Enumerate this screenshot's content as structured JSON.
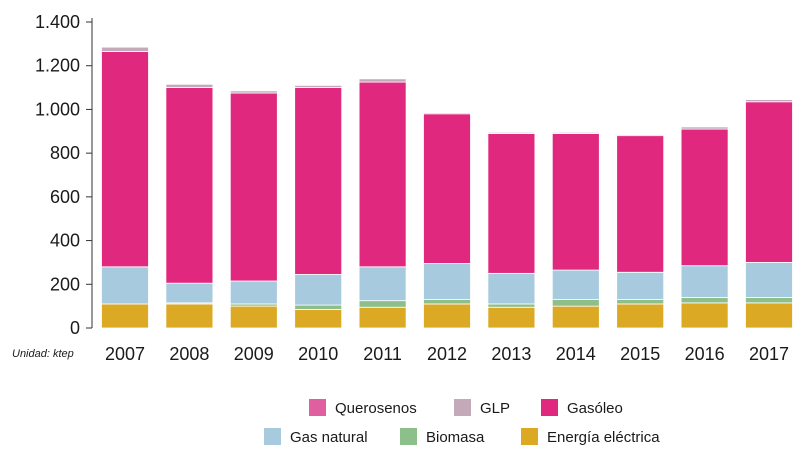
{
  "chart_data": {
    "type": "bar",
    "stacked": true,
    "unit_label": "Unidad: ktep",
    "categories": [
      "2007",
      "2008",
      "2009",
      "2010",
      "2011",
      "2012",
      "2013",
      "2014",
      "2015",
      "2016",
      "2017"
    ],
    "ylim": [
      0,
      1400
    ],
    "yticks": [
      0,
      200,
      400,
      600,
      800,
      1000,
      1200,
      1400
    ],
    "ytick_labels": [
      "0",
      "200",
      "400",
      "600",
      "800",
      "1.000",
      "1.200",
      "1.400"
    ],
    "series": [
      {
        "name": "Energía eléctrica",
        "color": "#DBA923",
        "values": [
          110,
          110,
          100,
          85,
          95,
          110,
          95,
          100,
          110,
          115,
          115
        ]
      },
      {
        "name": "Biomasa",
        "color": "#8DBF8B",
        "values": [
          0,
          5,
          10,
          20,
          30,
          20,
          15,
          30,
          20,
          25,
          25
        ]
      },
      {
        "name": "Gas natural",
        "color": "#A8CADE",
        "values": [
          170,
          90,
          105,
          140,
          155,
          165,
          140,
          135,
          125,
          145,
          160
        ]
      },
      {
        "name": "Gasóleo",
        "color": "#E0297E",
        "values": [
          985,
          895,
          860,
          855,
          845,
          685,
          640,
          625,
          625,
          625,
          735
        ]
      },
      {
        "name": "GLP",
        "color": "#C4A9B8",
        "values": [
          20,
          15,
          10,
          10,
          15,
          5,
          5,
          5,
          5,
          10,
          10
        ]
      },
      {
        "name": "Querosenos",
        "color": "#E05FA0",
        "values": [
          0,
          0,
          0,
          0,
          0,
          0,
          0,
          0,
          0,
          0,
          0
        ]
      }
    ],
    "legend": {
      "placement": "bottom-center",
      "row1": [
        "Querosenos",
        "GLP",
        "Gasóleo"
      ],
      "row2": [
        "Gas natural",
        "Biomasa",
        "Energía eléctrica"
      ]
    }
  }
}
